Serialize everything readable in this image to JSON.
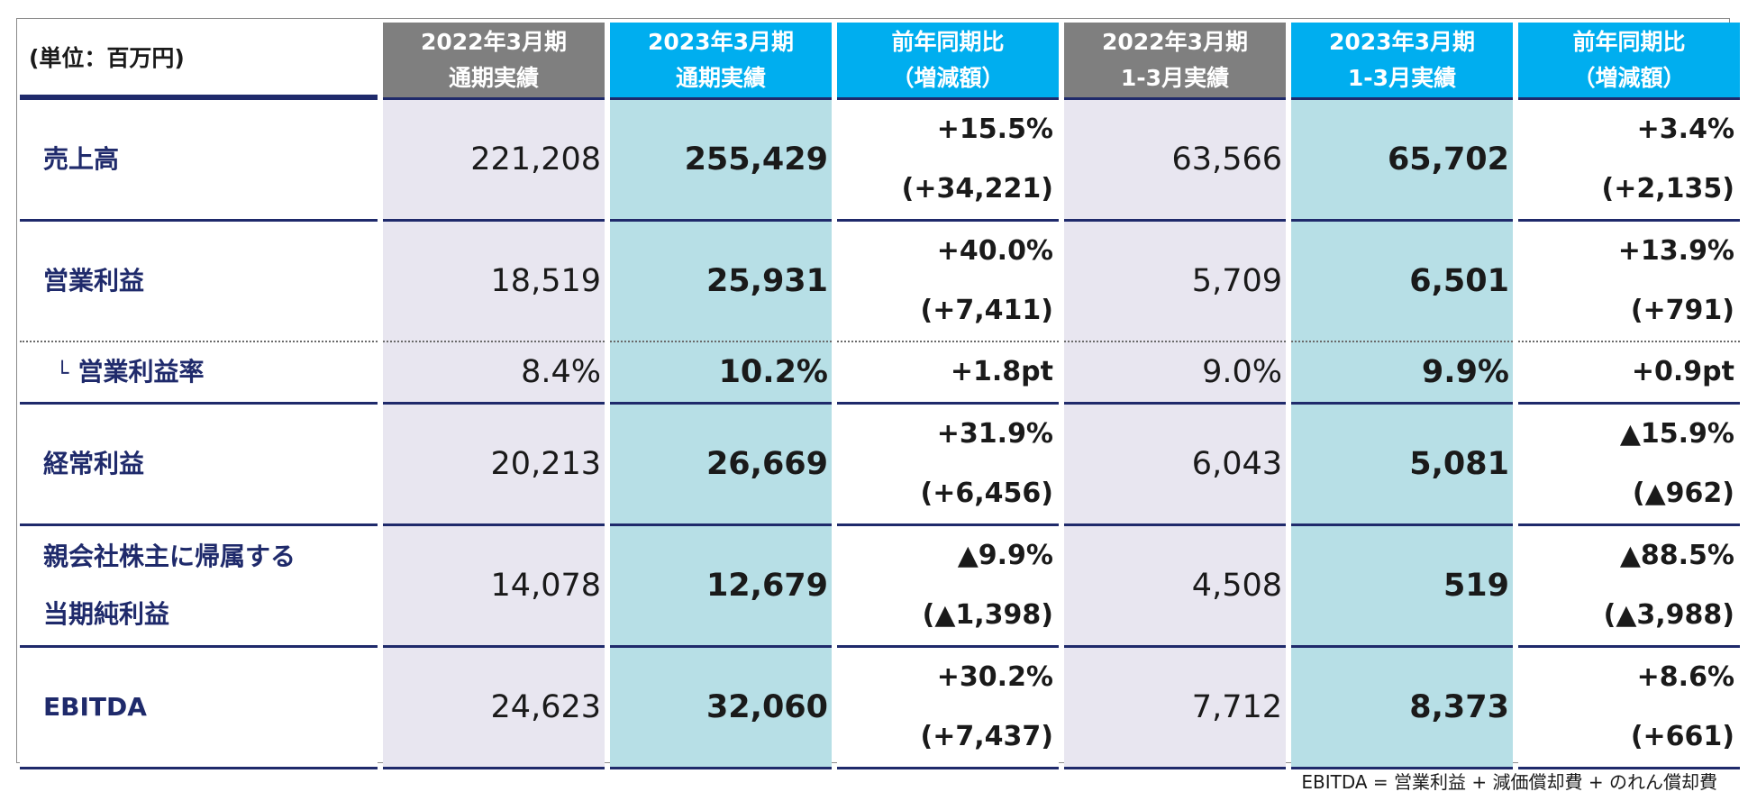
{
  "header": {
    "unit": "(単位：百万円)",
    "columns": [
      {
        "line1": "2022年3月期",
        "line2": "通期実績"
      },
      {
        "line1": "2023年3月期",
        "line2": "通期実績"
      },
      {
        "line1": "前年同期比",
        "line2": "（増減額）"
      },
      {
        "line1": "2022年3月期",
        "line2": "1-3月実績"
      },
      {
        "line1": "2023年3月期",
        "line2": "1-3月実績"
      },
      {
        "line1": "前年同期比",
        "line2": "（増減額）"
      }
    ]
  },
  "rows": [
    {
      "label1": "売上高",
      "label2": "",
      "fy22": "221,208",
      "fy23": "255,429",
      "fy_pct": "+15.5%",
      "fy_diff": "(+34,221)",
      "q22": "63,566",
      "q23": "65,702",
      "q_pct": "+3.4%",
      "q_diff": "(+2,135)"
    },
    {
      "label1": "営業利益",
      "label2": "",
      "fy22": "18,519",
      "fy23": "25,931",
      "fy_pct": "+40.0%",
      "fy_diff": "(+7,411)",
      "q22": "5,709",
      "q23": "6,501",
      "q_pct": "+13.9%",
      "q_diff": "(+791)"
    },
    {
      "tree": "└",
      "label1": "営業利益率",
      "fy22": "8.4%",
      "fy23": "10.2%",
      "fy_pct": "+1.8pt",
      "q22": "9.0%",
      "q23": "9.9%",
      "q_pct": "+0.9pt"
    },
    {
      "label1": "経常利益",
      "label2": "",
      "fy22": "20,213",
      "fy23": "26,669",
      "fy_pct": "+31.9%",
      "fy_diff": "(+6,456)",
      "q22": "6,043",
      "q23": "5,081",
      "q_pct": "▲15.9%",
      "q_diff": "(▲962)"
    },
    {
      "label1": "親会社株主に帰属する",
      "label2": "当期純利益",
      "fy22": "14,078",
      "fy23": "12,679",
      "fy_pct": "▲9.9%",
      "fy_diff": "(▲1,398)",
      "q22": "4,508",
      "q23": "519",
      "q_pct": "▲88.5%",
      "q_diff": "(▲3,988)"
    },
    {
      "label1": "EBITDA",
      "label2": "",
      "fy22": "24,623",
      "fy23": "32,060",
      "fy_pct": "+30.2%",
      "fy_diff": "(+7,437)",
      "q22": "7,712",
      "q23": "8,373",
      "q_pct": "+8.6%",
      "q_diff": "(+661)"
    }
  ],
  "footnote": "EBITDA = 営業利益 + 減価償却費 + のれん償却費"
}
